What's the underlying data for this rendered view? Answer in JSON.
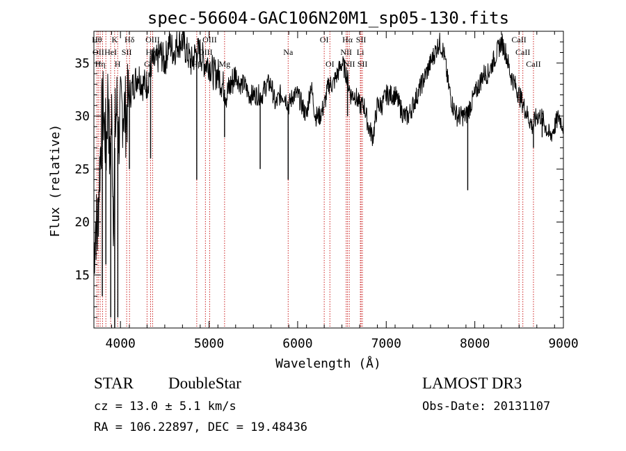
{
  "chart_data": {
    "type": "line",
    "title": "spec-56604-GAC106N20M1_sp05-130.fits",
    "xlabel": "Wavelength (Å)",
    "ylabel": "Flux (relative)",
    "xlim": [
      3700,
      9000
    ],
    "ylim": [
      10,
      38
    ],
    "x_ticks": [
      4000,
      5000,
      6000,
      7000,
      8000,
      9000
    ],
    "y_ticks": [
      15,
      20,
      25,
      30,
      35
    ],
    "x_ticks_labels": [
      "4000",
      "5000",
      "6000",
      "7000",
      "8000",
      "9000"
    ],
    "y_ticks_labels": [
      "15",
      "20",
      "25",
      "30",
      "35"
    ],
    "grid": false,
    "series": [
      {
        "name": "flux",
        "x": [
          3700,
          3720,
          3740,
          3760,
          3780,
          3800,
          3820,
          3840,
          3860,
          3880,
          3900,
          3920,
          3940,
          3960,
          3980,
          4000,
          4030,
          4060,
          4100,
          4150,
          4200,
          4250,
          4300,
          4350,
          4400,
          4450,
          4500,
          4550,
          4600,
          4650,
          4700,
          4750,
          4800,
          4850,
          4900,
          4950,
          5000,
          5050,
          5100,
          5150,
          5200,
          5250,
          5300,
          5350,
          5400,
          5450,
          5500,
          5550,
          5600,
          5650,
          5700,
          5750,
          5800,
          5850,
          5900,
          5950,
          6000,
          6050,
          6100,
          6150,
          6200,
          6250,
          6300,
          6350,
          6400,
          6450,
          6500,
          6550,
          6600,
          6650,
          6700,
          6750,
          6800,
          6850,
          6900,
          6950,
          7000,
          7050,
          7100,
          7150,
          7200,
          7250,
          7300,
          7350,
          7400,
          7450,
          7500,
          7550,
          7600,
          7650,
          7700,
          7750,
          7800,
          7850,
          7900,
          7950,
          8000,
          8050,
          8100,
          8150,
          8200,
          8250,
          8300,
          8350,
          8400,
          8450,
          8500,
          8550,
          8600,
          8650,
          8700,
          8750,
          8800,
          8850,
          8900,
          8950,
          9000
        ],
        "values": [
          17,
          20,
          19,
          24,
          28,
          31,
          29,
          27,
          33,
          25,
          30,
          21,
          29,
          31,
          28,
          30,
          31,
          30,
          32,
          33,
          34,
          33,
          33,
          35,
          35,
          36,
          35,
          37,
          36,
          37,
          37,
          36,
          35,
          36,
          36,
          35,
          35,
          34,
          34,
          33,
          32,
          33,
          34,
          33,
          33,
          32,
          32,
          32,
          32,
          33,
          33,
          31,
          32,
          32,
          31,
          32,
          32,
          31,
          30,
          33,
          30,
          30,
          31,
          33,
          33,
          34,
          35,
          34,
          32,
          32,
          31,
          31,
          29,
          28,
          31,
          31,
          32,
          32,
          32,
          31,
          30,
          30,
          31,
          32,
          33,
          34,
          35,
          36,
          37,
          36,
          33,
          31,
          30,
          30,
          30,
          31,
          32,
          33,
          34,
          34,
          35,
          36,
          37,
          36,
          34,
          33,
          32,
          31,
          30,
          29,
          30,
          30,
          29,
          28,
          29,
          30,
          29
        ]
      }
    ],
    "spikes": [
      {
        "x": 3795,
        "y": 13
      },
      {
        "x": 3835,
        "y": 16
      },
      {
        "x": 3890,
        "y": 11
      },
      {
        "x": 3935,
        "y": 10
      },
      {
        "x": 3970,
        "y": 11
      },
      {
        "x": 4101,
        "y": 25
      },
      {
        "x": 4340,
        "y": 26
      },
      {
        "x": 4861,
        "y": 24
      },
      {
        "x": 5175,
        "y": 28
      },
      {
        "x": 5577,
        "y": 25
      },
      {
        "x": 5893,
        "y": 24
      },
      {
        "x": 6563,
        "y": 30
      },
      {
        "x": 7920,
        "y": 23
      },
      {
        "x": 8662,
        "y": 27
      },
      {
        "x": 8760,
        "y": 28
      }
    ],
    "lines": [
      {
        "x": 3734,
        "label": "Hθ",
        "row": 0
      },
      {
        "x": 3750,
        "label": "OII",
        "row": 1
      },
      {
        "x": 3771,
        "label": "Hη",
        "row": 2
      },
      {
        "x": 3798,
        "label": "",
        "row": 2
      },
      {
        "x": 3835,
        "label": "",
        "row": 2
      },
      {
        "x": 3889,
        "label": "HeI",
        "row": 1
      },
      {
        "x": 3934,
        "label": "K",
        "row": 0
      },
      {
        "x": 3968,
        "label": "H",
        "row": 2
      },
      {
        "x": 4070,
        "label": "SII",
        "row": 1
      },
      {
        "x": 4102,
        "label": "Hδ",
        "row": 0
      },
      {
        "x": 4300,
        "label": "G",
        "row": 2
      },
      {
        "x": 4340,
        "label": "Hγ",
        "row": 1
      },
      {
        "x": 4363,
        "label": "OIII",
        "row": 0
      },
      {
        "x": 4861,
        "label": "Hβ",
        "row": 2
      },
      {
        "x": 4959,
        "label": "OIII",
        "row": 1
      },
      {
        "x": 5007,
        "label": "OIII",
        "row": 0
      },
      {
        "x": 5175,
        "label": "Mg",
        "row": 2
      },
      {
        "x": 5893,
        "label": "Na",
        "row": 1
      },
      {
        "x": 6300,
        "label": "OI",
        "row": 0
      },
      {
        "x": 6364,
        "label": "OI",
        "row": 2
      },
      {
        "x": 6548,
        "label": "NII",
        "row": 1
      },
      {
        "x": 6563,
        "label": "Hα",
        "row": 0
      },
      {
        "x": 6583,
        "label": "NII",
        "row": 2
      },
      {
        "x": 6708,
        "label": "Li",
        "row": 1
      },
      {
        "x": 6716,
        "label": "SII",
        "row": 0
      },
      {
        "x": 6731,
        "label": "SII",
        "row": 2
      },
      {
        "x": 8498,
        "label": "CaII",
        "row": 0
      },
      {
        "x": 8542,
        "label": "CaII",
        "row": 1
      },
      {
        "x": 8662,
        "label": "CaII",
        "row": 2
      }
    ]
  },
  "info": {
    "class": "STAR",
    "subclass": "DoubleStar",
    "survey": "LAMOST DR3",
    "cz": "cz = 13.0 ± 5.1 km/s",
    "obs_date": "Obs-Date: 20131107",
    "coords": "RA = 106.22897, DEC =  19.48436"
  },
  "colors": {
    "line_marker": "#cc2020",
    "spectrum": "#000000",
    "axes": "#000000"
  }
}
